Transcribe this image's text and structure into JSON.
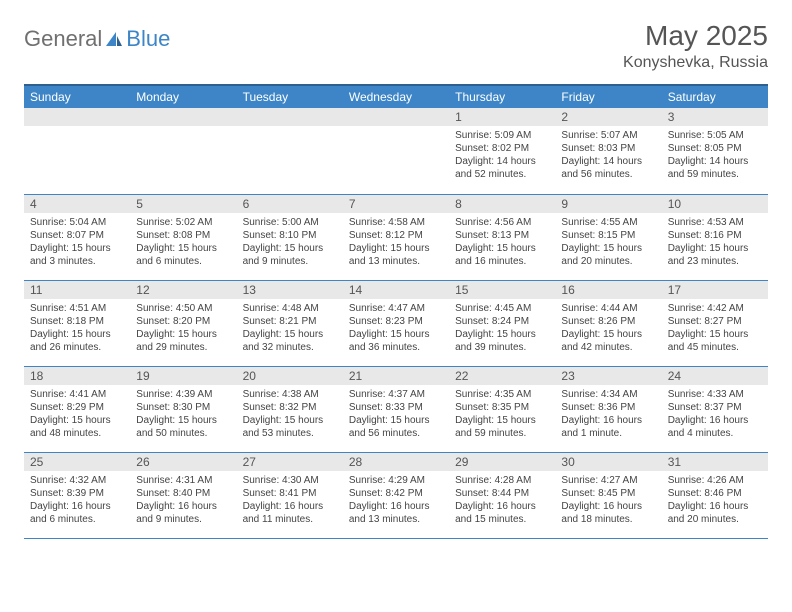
{
  "logo": {
    "text1": "General",
    "text2": "Blue"
  },
  "title": "May 2025",
  "location": "Konyshevka, Russia",
  "colors": {
    "header_bg": "#3d85c6",
    "header_border": "#2d5f8f",
    "daynum_bg": "#e8e8e8",
    "row_border": "#3d85c6",
    "text": "#444444",
    "title_text": "#555555"
  },
  "weekdays": [
    "Sunday",
    "Monday",
    "Tuesday",
    "Wednesday",
    "Thursday",
    "Friday",
    "Saturday"
  ],
  "weeks": [
    [
      null,
      null,
      null,
      null,
      {
        "n": "1",
        "sr": "Sunrise: 5:09 AM",
        "ss": "Sunset: 8:02 PM",
        "dl1": "Daylight: 14 hours",
        "dl2": "and 52 minutes."
      },
      {
        "n": "2",
        "sr": "Sunrise: 5:07 AM",
        "ss": "Sunset: 8:03 PM",
        "dl1": "Daylight: 14 hours",
        "dl2": "and 56 minutes."
      },
      {
        "n": "3",
        "sr": "Sunrise: 5:05 AM",
        "ss": "Sunset: 8:05 PM",
        "dl1": "Daylight: 14 hours",
        "dl2": "and 59 minutes."
      }
    ],
    [
      {
        "n": "4",
        "sr": "Sunrise: 5:04 AM",
        "ss": "Sunset: 8:07 PM",
        "dl1": "Daylight: 15 hours",
        "dl2": "and 3 minutes."
      },
      {
        "n": "5",
        "sr": "Sunrise: 5:02 AM",
        "ss": "Sunset: 8:08 PM",
        "dl1": "Daylight: 15 hours",
        "dl2": "and 6 minutes."
      },
      {
        "n": "6",
        "sr": "Sunrise: 5:00 AM",
        "ss": "Sunset: 8:10 PM",
        "dl1": "Daylight: 15 hours",
        "dl2": "and 9 minutes."
      },
      {
        "n": "7",
        "sr": "Sunrise: 4:58 AM",
        "ss": "Sunset: 8:12 PM",
        "dl1": "Daylight: 15 hours",
        "dl2": "and 13 minutes."
      },
      {
        "n": "8",
        "sr": "Sunrise: 4:56 AM",
        "ss": "Sunset: 8:13 PM",
        "dl1": "Daylight: 15 hours",
        "dl2": "and 16 minutes."
      },
      {
        "n": "9",
        "sr": "Sunrise: 4:55 AM",
        "ss": "Sunset: 8:15 PM",
        "dl1": "Daylight: 15 hours",
        "dl2": "and 20 minutes."
      },
      {
        "n": "10",
        "sr": "Sunrise: 4:53 AM",
        "ss": "Sunset: 8:16 PM",
        "dl1": "Daylight: 15 hours",
        "dl2": "and 23 minutes."
      }
    ],
    [
      {
        "n": "11",
        "sr": "Sunrise: 4:51 AM",
        "ss": "Sunset: 8:18 PM",
        "dl1": "Daylight: 15 hours",
        "dl2": "and 26 minutes."
      },
      {
        "n": "12",
        "sr": "Sunrise: 4:50 AM",
        "ss": "Sunset: 8:20 PM",
        "dl1": "Daylight: 15 hours",
        "dl2": "and 29 minutes."
      },
      {
        "n": "13",
        "sr": "Sunrise: 4:48 AM",
        "ss": "Sunset: 8:21 PM",
        "dl1": "Daylight: 15 hours",
        "dl2": "and 32 minutes."
      },
      {
        "n": "14",
        "sr": "Sunrise: 4:47 AM",
        "ss": "Sunset: 8:23 PM",
        "dl1": "Daylight: 15 hours",
        "dl2": "and 36 minutes."
      },
      {
        "n": "15",
        "sr": "Sunrise: 4:45 AM",
        "ss": "Sunset: 8:24 PM",
        "dl1": "Daylight: 15 hours",
        "dl2": "and 39 minutes."
      },
      {
        "n": "16",
        "sr": "Sunrise: 4:44 AM",
        "ss": "Sunset: 8:26 PM",
        "dl1": "Daylight: 15 hours",
        "dl2": "and 42 minutes."
      },
      {
        "n": "17",
        "sr": "Sunrise: 4:42 AM",
        "ss": "Sunset: 8:27 PM",
        "dl1": "Daylight: 15 hours",
        "dl2": "and 45 minutes."
      }
    ],
    [
      {
        "n": "18",
        "sr": "Sunrise: 4:41 AM",
        "ss": "Sunset: 8:29 PM",
        "dl1": "Daylight: 15 hours",
        "dl2": "and 48 minutes."
      },
      {
        "n": "19",
        "sr": "Sunrise: 4:39 AM",
        "ss": "Sunset: 8:30 PM",
        "dl1": "Daylight: 15 hours",
        "dl2": "and 50 minutes."
      },
      {
        "n": "20",
        "sr": "Sunrise: 4:38 AM",
        "ss": "Sunset: 8:32 PM",
        "dl1": "Daylight: 15 hours",
        "dl2": "and 53 minutes."
      },
      {
        "n": "21",
        "sr": "Sunrise: 4:37 AM",
        "ss": "Sunset: 8:33 PM",
        "dl1": "Daylight: 15 hours",
        "dl2": "and 56 minutes."
      },
      {
        "n": "22",
        "sr": "Sunrise: 4:35 AM",
        "ss": "Sunset: 8:35 PM",
        "dl1": "Daylight: 15 hours",
        "dl2": "and 59 minutes."
      },
      {
        "n": "23",
        "sr": "Sunrise: 4:34 AM",
        "ss": "Sunset: 8:36 PM",
        "dl1": "Daylight: 16 hours",
        "dl2": "and 1 minute."
      },
      {
        "n": "24",
        "sr": "Sunrise: 4:33 AM",
        "ss": "Sunset: 8:37 PM",
        "dl1": "Daylight: 16 hours",
        "dl2": "and 4 minutes."
      }
    ],
    [
      {
        "n": "25",
        "sr": "Sunrise: 4:32 AM",
        "ss": "Sunset: 8:39 PM",
        "dl1": "Daylight: 16 hours",
        "dl2": "and 6 minutes."
      },
      {
        "n": "26",
        "sr": "Sunrise: 4:31 AM",
        "ss": "Sunset: 8:40 PM",
        "dl1": "Daylight: 16 hours",
        "dl2": "and 9 minutes."
      },
      {
        "n": "27",
        "sr": "Sunrise: 4:30 AM",
        "ss": "Sunset: 8:41 PM",
        "dl1": "Daylight: 16 hours",
        "dl2": "and 11 minutes."
      },
      {
        "n": "28",
        "sr": "Sunrise: 4:29 AM",
        "ss": "Sunset: 8:42 PM",
        "dl1": "Daylight: 16 hours",
        "dl2": "and 13 minutes."
      },
      {
        "n": "29",
        "sr": "Sunrise: 4:28 AM",
        "ss": "Sunset: 8:44 PM",
        "dl1": "Daylight: 16 hours",
        "dl2": "and 15 minutes."
      },
      {
        "n": "30",
        "sr": "Sunrise: 4:27 AM",
        "ss": "Sunset: 8:45 PM",
        "dl1": "Daylight: 16 hours",
        "dl2": "and 18 minutes."
      },
      {
        "n": "31",
        "sr": "Sunrise: 4:26 AM",
        "ss": "Sunset: 8:46 PM",
        "dl1": "Daylight: 16 hours",
        "dl2": "and 20 minutes."
      }
    ]
  ]
}
